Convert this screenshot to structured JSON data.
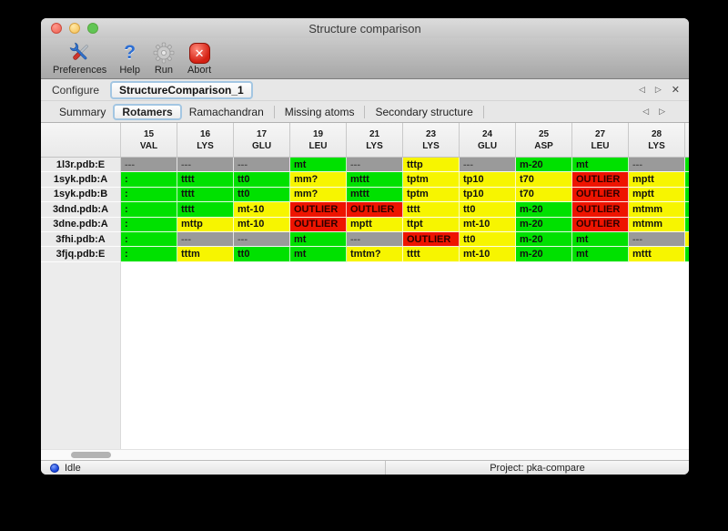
{
  "window": {
    "title": "Structure comparison"
  },
  "toolbar": {
    "items": [
      {
        "label": "Preferences",
        "icon": "tools-icon"
      },
      {
        "label": "Help",
        "icon": "help-icon"
      },
      {
        "label": "Run",
        "icon": "gear-icon"
      },
      {
        "label": "Abort",
        "icon": "abort-icon"
      }
    ]
  },
  "configure": {
    "label": "Configure",
    "selected_doc": "StructureComparison_1",
    "nav": {
      "prev": "◁",
      "next": "▷",
      "close": "✕"
    }
  },
  "tabs": {
    "items": [
      "Summary",
      "Rotamers",
      "Ramachandran",
      "Missing atoms",
      "Secondary structure"
    ],
    "selected": "Rotamers",
    "nav": {
      "prev": "◁",
      "next": "▷"
    }
  },
  "table": {
    "colors": {
      "green": "#00e100",
      "yellow": "#f7f500",
      "red": "#ee1400",
      "gray": "#9a9a9a"
    },
    "columns": [
      {
        "num": "15",
        "res": "VAL"
      },
      {
        "num": "16",
        "res": "LYS"
      },
      {
        "num": "17",
        "res": "GLU"
      },
      {
        "num": "19",
        "res": "LEU"
      },
      {
        "num": "21",
        "res": "LYS"
      },
      {
        "num": "23",
        "res": "LYS"
      },
      {
        "num": "24",
        "res": "GLU"
      },
      {
        "num": "25",
        "res": "ASP"
      },
      {
        "num": "27",
        "res": "LEU"
      },
      {
        "num": "28",
        "res": "LYS"
      }
    ],
    "rows": [
      {
        "label": "1l3r.pdb:E",
        "cells": [
          [
            "---",
            "gray"
          ],
          [
            "---",
            "gray"
          ],
          [
            "---",
            "gray"
          ],
          [
            "mt",
            "green"
          ],
          [
            "---",
            "gray"
          ],
          [
            "tttp",
            "yellow"
          ],
          [
            "---",
            "gray"
          ],
          [
            "m-20",
            "green"
          ],
          [
            "mt",
            "green"
          ],
          [
            "---",
            "gray"
          ]
        ],
        "next_col": "green"
      },
      {
        "label": "1syk.pdb:A",
        "cells": [
          [
            ":",
            "green"
          ],
          [
            "tttt",
            "green"
          ],
          [
            "tt0",
            "green"
          ],
          [
            "mm?",
            "yellow"
          ],
          [
            "mttt",
            "green"
          ],
          [
            "tptm",
            "yellow"
          ],
          [
            "tp10",
            "yellow"
          ],
          [
            "t70",
            "yellow"
          ],
          [
            "OUTLIER",
            "red"
          ],
          [
            "mptt",
            "yellow"
          ]
        ],
        "next_col": "green"
      },
      {
        "label": "1syk.pdb:B",
        "cells": [
          [
            ":",
            "green"
          ],
          [
            "tttt",
            "green"
          ],
          [
            "tt0",
            "green"
          ],
          [
            "mm?",
            "yellow"
          ],
          [
            "mttt",
            "green"
          ],
          [
            "tptm",
            "yellow"
          ],
          [
            "tp10",
            "yellow"
          ],
          [
            "t70",
            "yellow"
          ],
          [
            "OUTLIER",
            "red"
          ],
          [
            "mptt",
            "yellow"
          ]
        ],
        "next_col": "green"
      },
      {
        "label": "3dnd.pdb:A",
        "cells": [
          [
            ":",
            "green"
          ],
          [
            "tttt",
            "green"
          ],
          [
            "mt-10",
            "yellow"
          ],
          [
            "OUTLIER",
            "red"
          ],
          [
            "OUTLIER",
            "red"
          ],
          [
            "tttt",
            "yellow"
          ],
          [
            "tt0",
            "yellow"
          ],
          [
            "m-20",
            "green"
          ],
          [
            "OUTLIER",
            "red"
          ],
          [
            "mtmm",
            "yellow"
          ]
        ],
        "next_col": "green"
      },
      {
        "label": "3dne.pdb:A",
        "cells": [
          [
            ":",
            "green"
          ],
          [
            "mttp",
            "yellow"
          ],
          [
            "mt-10",
            "yellow"
          ],
          [
            "OUTLIER",
            "red"
          ],
          [
            "mptt",
            "yellow"
          ],
          [
            "ttpt",
            "yellow"
          ],
          [
            "mt-10",
            "yellow"
          ],
          [
            "m-20",
            "green"
          ],
          [
            "OUTLIER",
            "red"
          ],
          [
            "mtmm",
            "yellow"
          ]
        ],
        "next_col": "green"
      },
      {
        "label": "3fhi.pdb:A",
        "cells": [
          [
            ":",
            "green"
          ],
          [
            "---",
            "gray"
          ],
          [
            "---",
            "gray"
          ],
          [
            "mt",
            "green"
          ],
          [
            "---",
            "gray"
          ],
          [
            "OUTLIER",
            "red"
          ],
          [
            "tt0",
            "yellow"
          ],
          [
            "m-20",
            "green"
          ],
          [
            "mt",
            "green"
          ],
          [
            "---",
            "gray"
          ]
        ],
        "next_col": "yellow"
      },
      {
        "label": "3fjq.pdb:E",
        "cells": [
          [
            ":",
            "green"
          ],
          [
            "tttm",
            "yellow"
          ],
          [
            "tt0",
            "green"
          ],
          [
            "mt",
            "green"
          ],
          [
            "tmtm?",
            "yellow"
          ],
          [
            "tttt",
            "yellow"
          ],
          [
            "mt-10",
            "yellow"
          ],
          [
            "m-20",
            "green"
          ],
          [
            "mt",
            "green"
          ],
          [
            "mttt",
            "yellow"
          ]
        ],
        "next_col": "green"
      }
    ]
  },
  "statusbar": {
    "status": "Idle",
    "project": "Project: pka-compare"
  }
}
